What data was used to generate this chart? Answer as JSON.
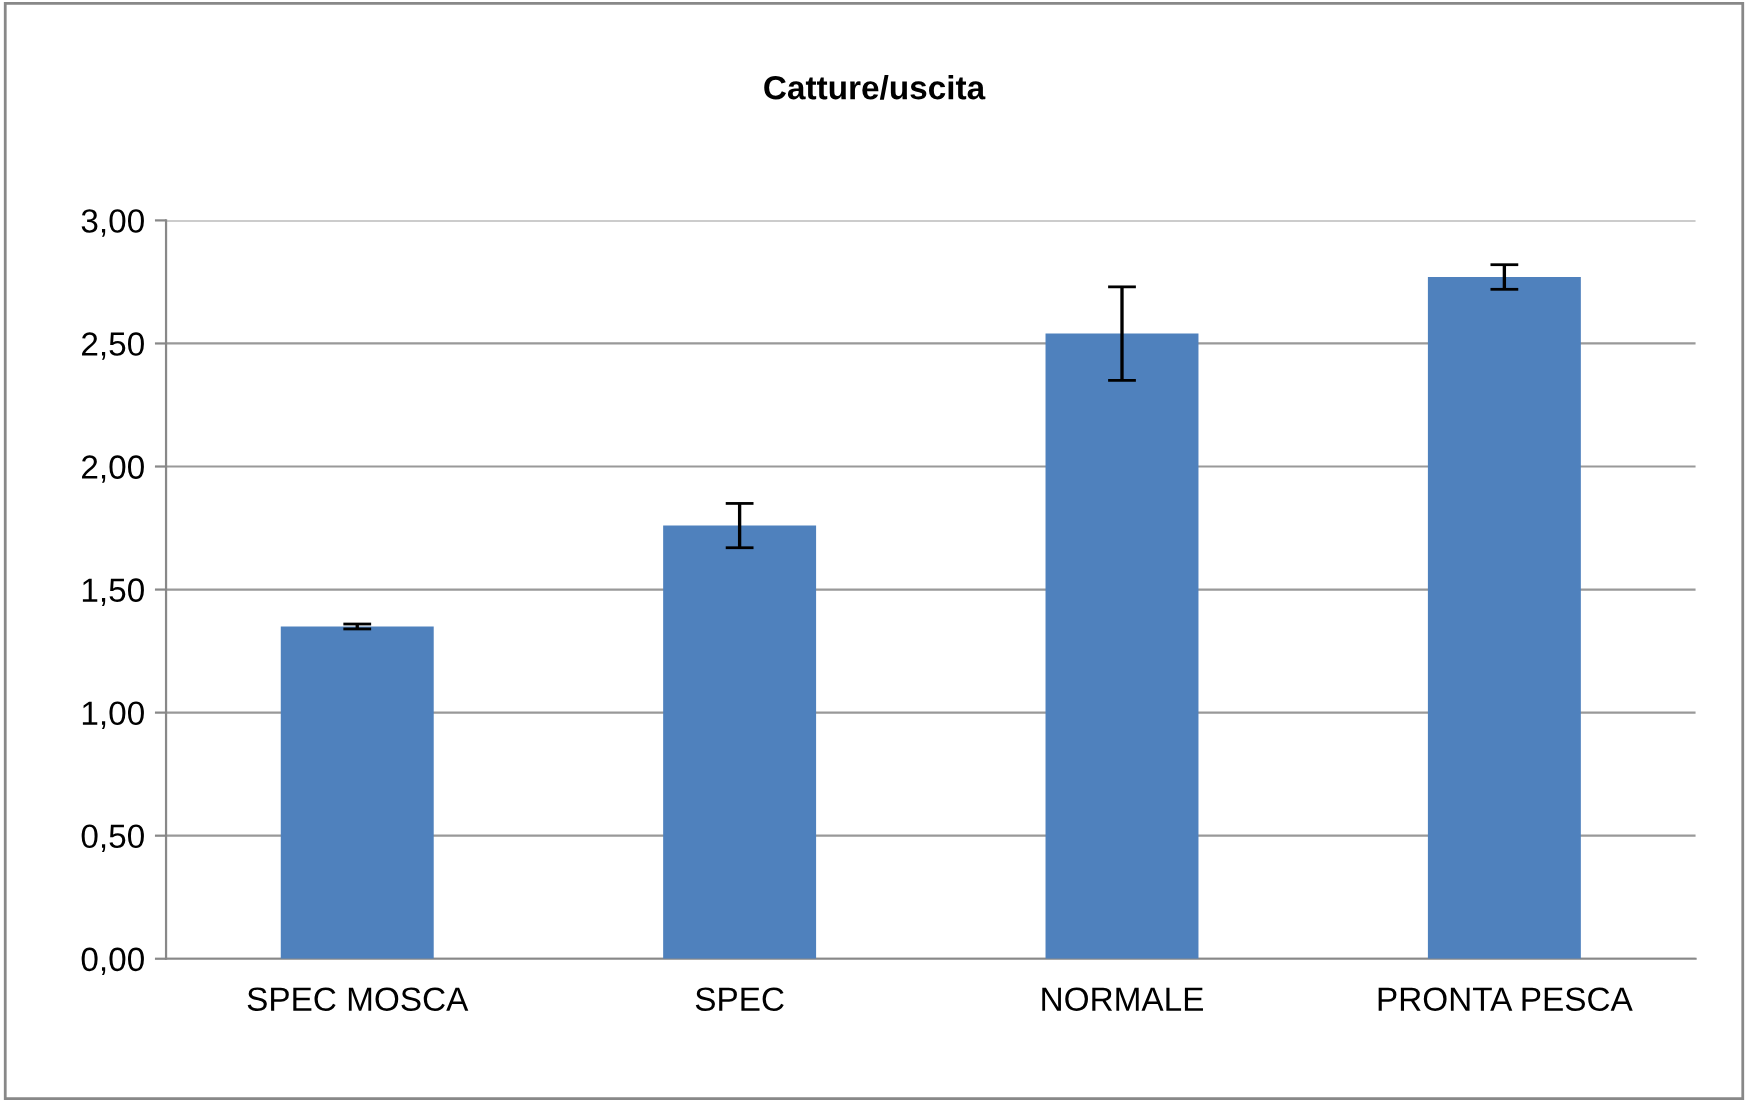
{
  "chart_data": {
    "type": "bar",
    "title": "Catture/uscita",
    "categories": [
      "SPEC MOSCA",
      "SPEC",
      "NORMALE",
      "PRONTA PESCA"
    ],
    "values": [
      1.35,
      1.76,
      2.54,
      2.77
    ],
    "errors": [
      0.01,
      0.09,
      0.19,
      0.05
    ],
    "color": "#4f81bd",
    "ylim": [
      0,
      3
    ],
    "yticks": [
      {
        "value": 0,
        "label": "0,00"
      },
      {
        "value": 0.5,
        "label": "0,50"
      },
      {
        "value": 1,
        "label": "1,00"
      },
      {
        "value": 1.5,
        "label": "1,50"
      },
      {
        "value": 2,
        "label": "2,00"
      },
      {
        "value": 2.5,
        "label": "2,50"
      },
      {
        "value": 3,
        "label": "3,00"
      }
    ],
    "grid": "y",
    "legend": false
  }
}
